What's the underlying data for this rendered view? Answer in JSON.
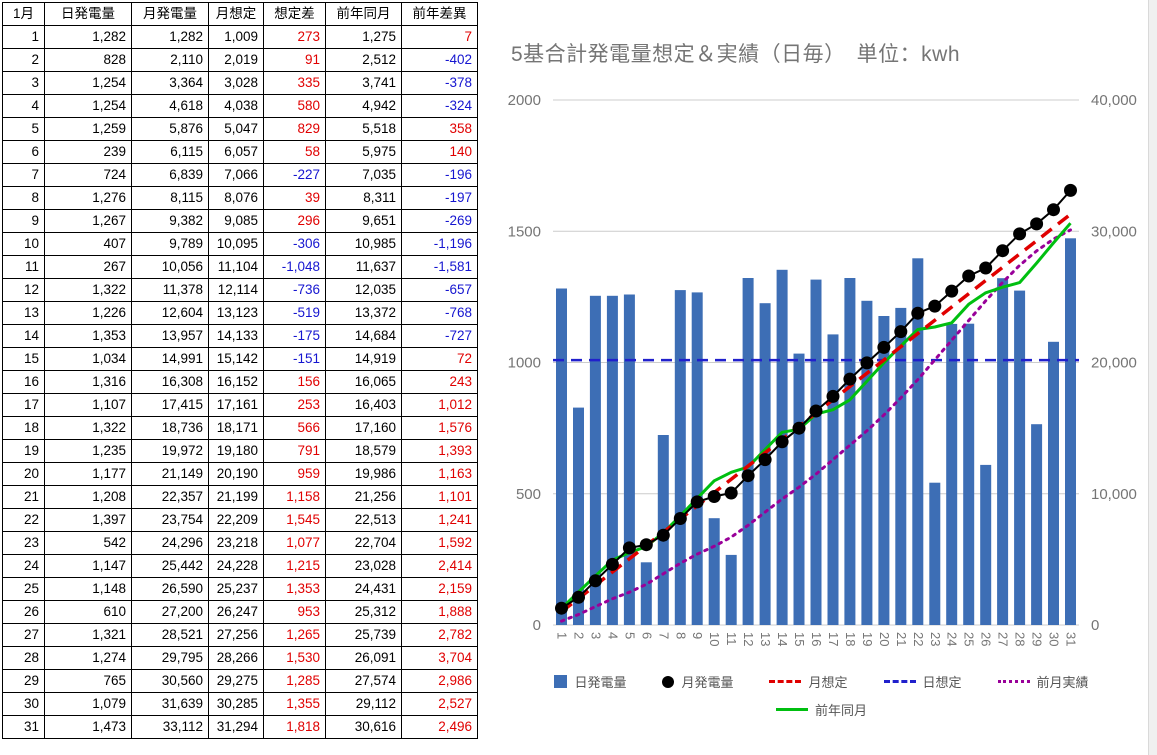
{
  "table": {
    "headers": [
      "1月",
      "日発電量",
      "月発電量",
      "月想定",
      "想定差",
      "前年同月",
      "前年差異"
    ],
    "rows": [
      {
        "day": "1",
        "daily": "1,282",
        "monthly": "1,282",
        "forecast": "1,009",
        "diff": "273",
        "prev_year": "1,275",
        "prev_diff": "7"
      },
      {
        "day": "2",
        "daily": "828",
        "monthly": "2,110",
        "forecast": "2,019",
        "diff": "91",
        "prev_year": "2,512",
        "prev_diff": "-402"
      },
      {
        "day": "3",
        "daily": "1,254",
        "monthly": "3,364",
        "forecast": "3,028",
        "diff": "335",
        "prev_year": "3,741",
        "prev_diff": "-378"
      },
      {
        "day": "4",
        "daily": "1,254",
        "monthly": "4,618",
        "forecast": "4,038",
        "diff": "580",
        "prev_year": "4,942",
        "prev_diff": "-324"
      },
      {
        "day": "5",
        "daily": "1,259",
        "monthly": "5,876",
        "forecast": "5,047",
        "diff": "829",
        "prev_year": "5,518",
        "prev_diff": "358"
      },
      {
        "day": "6",
        "daily": "239",
        "monthly": "6,115",
        "forecast": "6,057",
        "diff": "58",
        "prev_year": "5,975",
        "prev_diff": "140"
      },
      {
        "day": "7",
        "daily": "724",
        "monthly": "6,839",
        "forecast": "7,066",
        "diff": "-227",
        "prev_year": "7,035",
        "prev_diff": "-196"
      },
      {
        "day": "8",
        "daily": "1,276",
        "monthly": "8,115",
        "forecast": "8,076",
        "diff": "39",
        "prev_year": "8,311",
        "prev_diff": "-197"
      },
      {
        "day": "9",
        "daily": "1,267",
        "monthly": "9,382",
        "forecast": "9,085",
        "diff": "296",
        "prev_year": "9,651",
        "prev_diff": "-269"
      },
      {
        "day": "10",
        "daily": "407",
        "monthly": "9,789",
        "forecast": "10,095",
        "diff": "-306",
        "prev_year": "10,985",
        "prev_diff": "-1,196"
      },
      {
        "day": "11",
        "daily": "267",
        "monthly": "10,056",
        "forecast": "11,104",
        "diff": "-1,048",
        "prev_year": "11,637",
        "prev_diff": "-1,581"
      },
      {
        "day": "12",
        "daily": "1,322",
        "monthly": "11,378",
        "forecast": "12,114",
        "diff": "-736",
        "prev_year": "12,035",
        "prev_diff": "-657"
      },
      {
        "day": "13",
        "daily": "1,226",
        "monthly": "12,604",
        "forecast": "13,123",
        "diff": "-519",
        "prev_year": "13,372",
        "prev_diff": "-768"
      },
      {
        "day": "14",
        "daily": "1,353",
        "monthly": "13,957",
        "forecast": "14,133",
        "diff": "-175",
        "prev_year": "14,684",
        "prev_diff": "-727"
      },
      {
        "day": "15",
        "daily": "1,034",
        "monthly": "14,991",
        "forecast": "15,142",
        "diff": "-151",
        "prev_year": "14,919",
        "prev_diff": "72"
      },
      {
        "day": "16",
        "daily": "1,316",
        "monthly": "16,308",
        "forecast": "16,152",
        "diff": "156",
        "prev_year": "16,065",
        "prev_diff": "243"
      },
      {
        "day": "17",
        "daily": "1,107",
        "monthly": "17,415",
        "forecast": "17,161",
        "diff": "253",
        "prev_year": "16,403",
        "prev_diff": "1,012"
      },
      {
        "day": "18",
        "daily": "1,322",
        "monthly": "18,736",
        "forecast": "18,171",
        "diff": "566",
        "prev_year": "17,160",
        "prev_diff": "1,576"
      },
      {
        "day": "19",
        "daily": "1,235",
        "monthly": "19,972",
        "forecast": "19,180",
        "diff": "791",
        "prev_year": "18,579",
        "prev_diff": "1,393"
      },
      {
        "day": "20",
        "daily": "1,177",
        "monthly": "21,149",
        "forecast": "20,190",
        "diff": "959",
        "prev_year": "19,986",
        "prev_diff": "1,163"
      },
      {
        "day": "21",
        "daily": "1,208",
        "monthly": "22,357",
        "forecast": "21,199",
        "diff": "1,158",
        "prev_year": "21,256",
        "prev_diff": "1,101"
      },
      {
        "day": "22",
        "daily": "1,397",
        "monthly": "23,754",
        "forecast": "22,209",
        "diff": "1,545",
        "prev_year": "22,513",
        "prev_diff": "1,241"
      },
      {
        "day": "23",
        "daily": "542",
        "monthly": "24,296",
        "forecast": "23,218",
        "diff": "1,077",
        "prev_year": "22,704",
        "prev_diff": "1,592"
      },
      {
        "day": "24",
        "daily": "1,147",
        "monthly": "25,442",
        "forecast": "24,228",
        "diff": "1,215",
        "prev_year": "23,028",
        "prev_diff": "2,414"
      },
      {
        "day": "25",
        "daily": "1,148",
        "monthly": "26,590",
        "forecast": "25,237",
        "diff": "1,353",
        "prev_year": "24,431",
        "prev_diff": "2,159"
      },
      {
        "day": "26",
        "daily": "610",
        "monthly": "27,200",
        "forecast": "26,247",
        "diff": "953",
        "prev_year": "25,312",
        "prev_diff": "1,888"
      },
      {
        "day": "27",
        "daily": "1,321",
        "monthly": "28,521",
        "forecast": "27,256",
        "diff": "1,265",
        "prev_year": "25,739",
        "prev_diff": "2,782"
      },
      {
        "day": "28",
        "daily": "1,274",
        "monthly": "29,795",
        "forecast": "28,266",
        "diff": "1,530",
        "prev_year": "26,091",
        "prev_diff": "3,704"
      },
      {
        "day": "29",
        "daily": "765",
        "monthly": "30,560",
        "forecast": "29,275",
        "diff": "1,285",
        "prev_year": "27,574",
        "prev_diff": "2,986"
      },
      {
        "day": "30",
        "daily": "1,079",
        "monthly": "31,639",
        "forecast": "30,285",
        "diff": "1,355",
        "prev_year": "29,112",
        "prev_diff": "2,527"
      },
      {
        "day": "31",
        "daily": "1,473",
        "monthly": "33,112",
        "forecast": "31,294",
        "diff": "1,818",
        "prev_year": "30,616",
        "prev_diff": "2,496"
      }
    ]
  },
  "chart_data": {
    "type": "bar",
    "subtype": "combo-bar-line",
    "title": "5基合計発電量想定＆実績（日毎）　単位：kwh",
    "x": [
      "1",
      "2",
      "3",
      "4",
      "5",
      "6",
      "7",
      "8",
      "9",
      "10",
      "11",
      "12",
      "13",
      "14",
      "15",
      "16",
      "17",
      "18",
      "19",
      "20",
      "21",
      "22",
      "23",
      "24",
      "25",
      "26",
      "27",
      "28",
      "29",
      "30",
      "31"
    ],
    "left_axis": {
      "min": 0,
      "max": 2000,
      "tick_labels": [
        "0",
        "500",
        "1000",
        "1500",
        "2000"
      ]
    },
    "right_axis": {
      "min": 0,
      "max": 40000,
      "tick_labels": [
        "0",
        "10,000",
        "20,000",
        "30,000",
        "40,000"
      ]
    },
    "grid": true,
    "legend_position": "bottom",
    "series": [
      {
        "name": "日発電量",
        "type": "bar",
        "axis": "left",
        "color": "#3d6eb5",
        "values": [
          1282,
          828,
          1254,
          1254,
          1259,
          239,
          724,
          1276,
          1267,
          407,
          267,
          1322,
          1226,
          1353,
          1034,
          1316,
          1107,
          1322,
          1235,
          1177,
          1208,
          1397,
          542,
          1147,
          1148,
          610,
          1321,
          1274,
          765,
          1079,
          1473
        ]
      },
      {
        "name": "月発電量",
        "type": "point",
        "axis": "right",
        "color": "#000000",
        "values": [
          1282,
          2110,
          3364,
          4618,
          5876,
          6115,
          6839,
          8115,
          9382,
          9789,
          10056,
          11378,
          12604,
          13957,
          14991,
          16308,
          17415,
          18736,
          19972,
          21149,
          22357,
          23754,
          24296,
          25442,
          26590,
          27200,
          28521,
          29795,
          30560,
          31639,
          33112
        ]
      },
      {
        "name": "月想定",
        "type": "line",
        "style": "dashed",
        "axis": "right",
        "color": "#e00000",
        "values": [
          1009,
          2019,
          3028,
          4038,
          5047,
          6057,
          7066,
          8076,
          9085,
          10095,
          11104,
          12114,
          13123,
          14133,
          15142,
          16152,
          17161,
          18171,
          19180,
          20190,
          21199,
          22209,
          23218,
          24228,
          25237,
          26247,
          27256,
          28266,
          29275,
          30285,
          31294
        ]
      },
      {
        "name": "日想定",
        "type": "hline",
        "style": "dashed",
        "axis": "left",
        "color": "#2020cc",
        "value": 1009
      },
      {
        "name": "前月実績",
        "type": "line",
        "style": "dotted",
        "axis": "right",
        "color": "#990099",
        "values": [
          300,
          800,
          1400,
          2000,
          2500,
          3100,
          3900,
          4700,
          5400,
          6000,
          6700,
          7600,
          8600,
          9600,
          10500,
          11500,
          12600,
          13700,
          14800,
          16000,
          17300,
          18700,
          20200,
          21700,
          23200,
          24700,
          26100,
          27400,
          28500,
          29400,
          30100
        ]
      },
      {
        "name": "前年同月",
        "type": "line",
        "style": "solid",
        "axis": "right",
        "color": "#00bf10",
        "values": [
          1275,
          2512,
          3741,
          4942,
          5518,
          5975,
          7035,
          8311,
          9651,
          10985,
          11637,
          12035,
          13372,
          14684,
          14919,
          16065,
          16403,
          17160,
          18579,
          19986,
          21256,
          22513,
          22704,
          23028,
          24431,
          25312,
          25739,
          26091,
          27574,
          29112,
          30616
        ]
      }
    ],
    "legend_rows": [
      [
        0,
        1,
        2,
        3,
        4
      ],
      [
        5
      ]
    ]
  }
}
